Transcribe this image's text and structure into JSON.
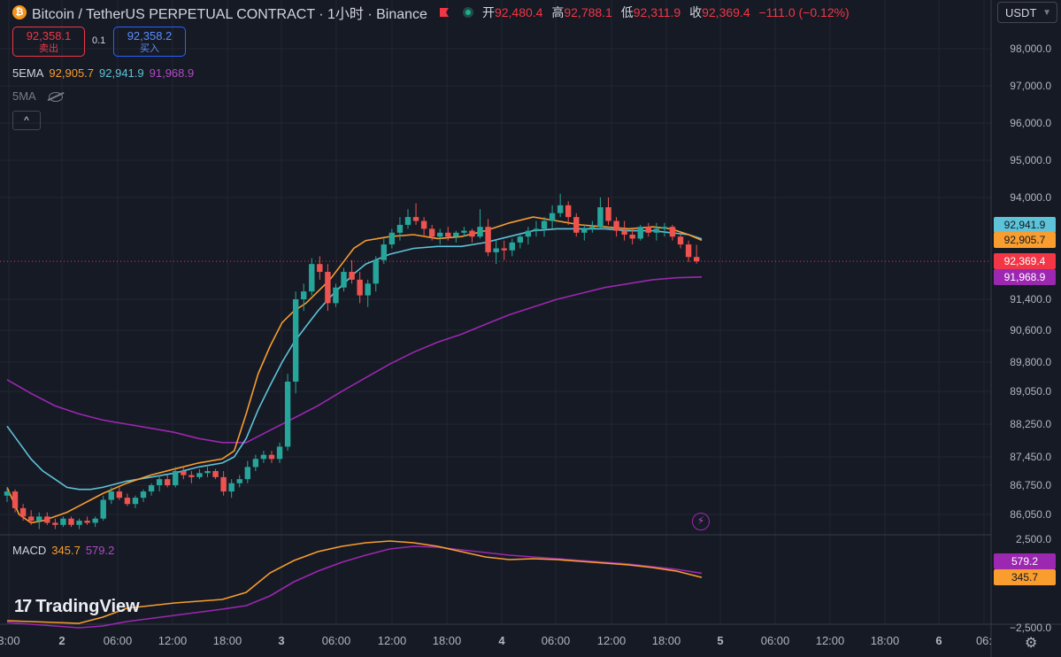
{
  "header": {
    "coin_icon": "bitcoin-icon",
    "title": "Bitcoin / TetherUS PERPETUAL CONTRACT · 1小时 · Binance",
    "ohlc": [
      {
        "label": "开",
        "value": "92,480.4"
      },
      {
        "label": "高",
        "value": "92,788.1"
      },
      {
        "label": "低",
        "value": "92,311.9"
      },
      {
        "label": "收",
        "value": "92,369.4"
      }
    ],
    "change": "−111.0 (−0.12%)",
    "currency": "USDT"
  },
  "trade": {
    "sell_price": "92,358.1",
    "sell_label": "卖出",
    "spread": "0.1",
    "buy_price": "92,358.2",
    "buy_label": "买入"
  },
  "indicators": {
    "ema": {
      "name": "5EMA",
      "v1": "92,905.7",
      "v2": "92,941.9",
      "v3": "91,968.9"
    },
    "ma": {
      "name": "5MA"
    },
    "macd": {
      "name": "MACD",
      "v1": "345.7",
      "v2": "579.2"
    }
  },
  "branding": {
    "logo": "TradingView"
  },
  "colors": {
    "background": "#161a25",
    "up": "#26a69a",
    "down": "#ef5350",
    "ema_fast": "#f89d2e",
    "ema_mid": "#5ec3d8",
    "ema_slow": "#9c27b0",
    "macd": "#f89d2e",
    "signal": "#9c27b0"
  },
  "chart_data": {
    "type": "candlestick",
    "price_axis_labels": [
      "98,000.0",
      "97,000.0",
      "96,000.0",
      "95,000.0",
      "94,000.0",
      "91,400.0",
      "90,600.0",
      "89,800.0",
      "89,050.0",
      "88,250.0",
      "87,450.0",
      "86,750.0",
      "86,050.0"
    ],
    "price_axis_values": [
      98000,
      97000,
      96000,
      95000,
      94000,
      91400,
      90600,
      89800,
      89050,
      88250,
      87450,
      86750,
      86050
    ],
    "macd_axis_labels": [
      "2,500.0",
      "−2,500.0"
    ],
    "macd_axis_values": [
      2500,
      -2500
    ],
    "time_axis_labels": [
      "3:00",
      "2",
      "06:00",
      "12:00",
      "18:00",
      "3",
      "06:00",
      "12:00",
      "18:00",
      "4",
      "06:00",
      "12:00",
      "18:00",
      "5",
      "06:00",
      "12:00",
      "18:00",
      "6",
      "06:"
    ],
    "price_tags": [
      {
        "label": "92,941.9",
        "value": 92941.9,
        "color": "#5ec3d8"
      },
      {
        "label": "92,905.7",
        "value": 92905.7,
        "color": "#f89d2e"
      },
      {
        "label": "92,369.4",
        "value": 92369.4,
        "color": "#f23645"
      },
      {
        "label": "91,968.9",
        "value": 91968.9,
        "color": "#9c27b0"
      }
    ],
    "macd_tags": [
      {
        "label": "579.2",
        "value": 579.2,
        "color": "#9c27b0"
      },
      {
        "label": "345.7",
        "value": 345.7,
        "color": "#f89d2e"
      }
    ],
    "last_price": 92369.4,
    "candles": [
      [
        86500,
        86700,
        86350,
        86600
      ],
      [
        86600,
        86650,
        86100,
        86200
      ],
      [
        86200,
        86300,
        85900,
        86000
      ],
      [
        86000,
        86150,
        85800,
        85900
      ],
      [
        85900,
        86100,
        85700,
        86000
      ],
      [
        86000,
        86100,
        85800,
        85850
      ],
      [
        85850,
        85950,
        85700,
        85800
      ],
      [
        85800,
        86000,
        85750,
        85950
      ],
      [
        85950,
        86000,
        85750,
        85800
      ],
      [
        85800,
        85950,
        85700,
        85900
      ],
      [
        85900,
        86000,
        85800,
        85850
      ],
      [
        85850,
        86000,
        85750,
        85950
      ],
      [
        85950,
        86500,
        85900,
        86400
      ],
      [
        86400,
        86700,
        86300,
        86600
      ],
      [
        86600,
        86700,
        86400,
        86450
      ],
      [
        86450,
        86550,
        86250,
        86300
      ],
      [
        86300,
        86500,
        86200,
        86450
      ],
      [
        86450,
        86650,
        86350,
        86600
      ],
      [
        86600,
        86800,
        86500,
        86750
      ],
      [
        86750,
        87000,
        86600,
        86900
      ],
      [
        86900,
        87000,
        86700,
        86750
      ],
      [
        86750,
        87200,
        86700,
        87100
      ],
      [
        87100,
        87200,
        86900,
        87000
      ],
      [
        87000,
        87100,
        86800,
        86950
      ],
      [
        86950,
        87150,
        86900,
        87050
      ],
      [
        87050,
        87200,
        86950,
        87100
      ],
      [
        87100,
        87150,
        86900,
        86950
      ],
      [
        86950,
        87100,
        86500,
        86600
      ],
      [
        86600,
        86900,
        86450,
        86800
      ],
      [
        86800,
        87000,
        86700,
        86900
      ],
      [
        86900,
        87350,
        86800,
        87200
      ],
      [
        87200,
        87500,
        87100,
        87400
      ],
      [
        87400,
        87600,
        87300,
        87500
      ],
      [
        87500,
        87600,
        87300,
        87400
      ],
      [
        87400,
        87800,
        87300,
        87700
      ],
      [
        87700,
        89500,
        87600,
        89300
      ],
      [
        89300,
        91600,
        89000,
        91400
      ],
      [
        91400,
        91800,
        91100,
        91600
      ],
      [
        91600,
        92450,
        91500,
        92300
      ],
      [
        92300,
        92500,
        91900,
        92100
      ],
      [
        92100,
        92300,
        91100,
        91300
      ],
      [
        91300,
        91800,
        91200,
        91700
      ],
      [
        91700,
        92200,
        91600,
        92100
      ],
      [
        92100,
        92400,
        91800,
        91900
      ],
      [
        91900,
        92100,
        91300,
        91500
      ],
      [
        91500,
        91900,
        91200,
        91800
      ],
      [
        91800,
        92500,
        91600,
        92400
      ],
      [
        92400,
        92950,
        92300,
        92800
      ],
      [
        92800,
        93200,
        92700,
        93100
      ],
      [
        93100,
        93500,
        92900,
        93300
      ],
      [
        93300,
        93700,
        93200,
        93500
      ],
      [
        93500,
        93850,
        93300,
        93400
      ],
      [
        93400,
        93500,
        93000,
        93200
      ],
      [
        93200,
        93300,
        92900,
        93000
      ],
      [
        93000,
        93200,
        92800,
        93100
      ],
      [
        93100,
        93250,
        92900,
        93000
      ],
      [
        93000,
        93150,
        92850,
        93100
      ],
      [
        93100,
        93250,
        93000,
        93150
      ],
      [
        93150,
        93200,
        92850,
        93000
      ],
      [
        93000,
        93700,
        92950,
        93250
      ],
      [
        93250,
        93450,
        92500,
        92600
      ],
      [
        92600,
        92900,
        92300,
        92700
      ],
      [
        92700,
        92900,
        92400,
        92650
      ],
      [
        92650,
        92950,
        92500,
        92850
      ],
      [
        92850,
        93100,
        92700,
        93000
      ],
      [
        93000,
        93250,
        92800,
        93150
      ],
      [
        93150,
        93400,
        93000,
        93200
      ],
      [
        93200,
        93500,
        93000,
        93400
      ],
      [
        93400,
        93800,
        93200,
        93600
      ],
      [
        93600,
        94100,
        93500,
        93800
      ],
      [
        93800,
        93900,
        93300,
        93500
      ],
      [
        93500,
        93600,
        93000,
        93100
      ],
      [
        93100,
        93300,
        92900,
        93200
      ],
      [
        93200,
        93400,
        93100,
        93250
      ],
      [
        93250,
        94000,
        93200,
        93750
      ],
      [
        93750,
        94000,
        93300,
        93400
      ],
      [
        93400,
        93500,
        93000,
        93150
      ],
      [
        93150,
        93400,
        92900,
        93050
      ],
      [
        93050,
        93200,
        92800,
        92950
      ],
      [
        92950,
        93300,
        92900,
        93250
      ],
      [
        93250,
        93350,
        93000,
        93100
      ],
      [
        93100,
        93350,
        92900,
        93200
      ],
      [
        93200,
        93350,
        93000,
        93250
      ],
      [
        93250,
        93300,
        92900,
        93000
      ],
      [
        93000,
        93050,
        92700,
        92800
      ],
      [
        92800,
        92900,
        92350,
        92480
      ],
      [
        92480,
        92788,
        92312,
        92369
      ]
    ],
    "ema_fast": [
      [
        0,
        86700
      ],
      [
        10,
        86050
      ],
      [
        20,
        85850
      ],
      [
        30,
        85900
      ],
      [
        40,
        86000
      ],
      [
        50,
        86100
      ],
      [
        60,
        86250
      ],
      [
        70,
        86400
      ],
      [
        80,
        86550
      ],
      [
        100,
        86800
      ],
      [
        120,
        87000
      ],
      [
        140,
        87150
      ],
      [
        160,
        87300
      ],
      [
        180,
        87400
      ],
      [
        190,
        87600
      ],
      [
        200,
        88500
      ],
      [
        210,
        89500
      ],
      [
        220,
        90200
      ],
      [
        230,
        90800
      ],
      [
        240,
        91100
      ],
      [
        250,
        91300
      ],
      [
        260,
        91600
      ],
      [
        270,
        91900
      ],
      [
        280,
        92300
      ],
      [
        290,
        92700
      ],
      [
        300,
        92900
      ],
      [
        320,
        93000
      ],
      [
        340,
        93050
      ],
      [
        360,
        92950
      ],
      [
        380,
        93000
      ],
      [
        400,
        93150
      ],
      [
        420,
        93350
      ],
      [
        440,
        93500
      ],
      [
        460,
        93400
      ],
      [
        480,
        93300
      ],
      [
        500,
        93250
      ],
      [
        520,
        93200
      ],
      [
        540,
        93250
      ],
      [
        555,
        93200
      ],
      [
        570,
        93050
      ],
      [
        581,
        92906
      ]
    ],
    "ema_mid": [
      [
        0,
        88200
      ],
      [
        10,
        87800
      ],
      [
        20,
        87400
      ],
      [
        30,
        87100
      ],
      [
        40,
        86900
      ],
      [
        50,
        86700
      ],
      [
        60,
        86650
      ],
      [
        70,
        86650
      ],
      [
        80,
        86700
      ],
      [
        100,
        86850
      ],
      [
        120,
        86950
      ],
      [
        140,
        87050
      ],
      [
        160,
        87200
      ],
      [
        180,
        87300
      ],
      [
        190,
        87450
      ],
      [
        200,
        87900
      ],
      [
        210,
        88600
      ],
      [
        220,
        89200
      ],
      [
        230,
        89800
      ],
      [
        240,
        90300
      ],
      [
        250,
        90700
      ],
      [
        260,
        91100
      ],
      [
        270,
        91450
      ],
      [
        280,
        91750
      ],
      [
        290,
        92050
      ],
      [
        300,
        92300
      ],
      [
        320,
        92550
      ],
      [
        340,
        92700
      ],
      [
        360,
        92750
      ],
      [
        380,
        92750
      ],
      [
        400,
        92850
      ],
      [
        420,
        93000
      ],
      [
        440,
        93150
      ],
      [
        460,
        93200
      ],
      [
        480,
        93200
      ],
      [
        500,
        93200
      ],
      [
        520,
        93150
      ],
      [
        540,
        93150
      ],
      [
        555,
        93100
      ],
      [
        570,
        93050
      ],
      [
        581,
        92942
      ]
    ],
    "ema_slow": [
      [
        0,
        89350
      ],
      [
        20,
        89000
      ],
      [
        40,
        88700
      ],
      [
        60,
        88500
      ],
      [
        80,
        88350
      ],
      [
        100,
        88250
      ],
      [
        120,
        88150
      ],
      [
        140,
        88050
      ],
      [
        160,
        87900
      ],
      [
        180,
        87800
      ],
      [
        200,
        87800
      ],
      [
        220,
        88100
      ],
      [
        240,
        88400
      ],
      [
        260,
        88700
      ],
      [
        280,
        89050
      ],
      [
        300,
        89400
      ],
      [
        320,
        89750
      ],
      [
        340,
        90050
      ],
      [
        360,
        90300
      ],
      [
        380,
        90500
      ],
      [
        400,
        90750
      ],
      [
        420,
        91000
      ],
      [
        440,
        91200
      ],
      [
        460,
        91400
      ],
      [
        480,
        91550
      ],
      [
        500,
        91700
      ],
      [
        520,
        91800
      ],
      [
        540,
        91900
      ],
      [
        560,
        91950
      ],
      [
        581,
        91969
      ]
    ],
    "macd_line": [
      [
        0,
        -2100
      ],
      [
        60,
        -2250
      ],
      [
        80,
        -1900
      ],
      [
        100,
        -1400
      ],
      [
        140,
        -1100
      ],
      [
        180,
        -900
      ],
      [
        200,
        -500
      ],
      [
        220,
        600
      ],
      [
        240,
        1300
      ],
      [
        260,
        1800
      ],
      [
        280,
        2100
      ],
      [
        300,
        2300
      ],
      [
        320,
        2400
      ],
      [
        340,
        2300
      ],
      [
        360,
        2100
      ],
      [
        380,
        1800
      ],
      [
        400,
        1500
      ],
      [
        420,
        1350
      ],
      [
        440,
        1400
      ],
      [
        460,
        1350
      ],
      [
        480,
        1250
      ],
      [
        500,
        1150
      ],
      [
        520,
        1050
      ],
      [
        540,
        900
      ],
      [
        560,
        700
      ],
      [
        581,
        346
      ]
    ],
    "signal_line": [
      [
        0,
        -2200
      ],
      [
        60,
        -2500
      ],
      [
        80,
        -2400
      ],
      [
        100,
        -2150
      ],
      [
        140,
        -1800
      ],
      [
        180,
        -1450
      ],
      [
        200,
        -1250
      ],
      [
        220,
        -700
      ],
      [
        240,
        100
      ],
      [
        260,
        700
      ],
      [
        280,
        1200
      ],
      [
        300,
        1600
      ],
      [
        320,
        1950
      ],
      [
        340,
        2100
      ],
      [
        360,
        2050
      ],
      [
        380,
        1900
      ],
      [
        400,
        1750
      ],
      [
        420,
        1600
      ],
      [
        440,
        1500
      ],
      [
        460,
        1400
      ],
      [
        480,
        1300
      ],
      [
        500,
        1200
      ],
      [
        520,
        1100
      ],
      [
        540,
        950
      ],
      [
        560,
        800
      ],
      [
        581,
        579
      ]
    ]
  }
}
